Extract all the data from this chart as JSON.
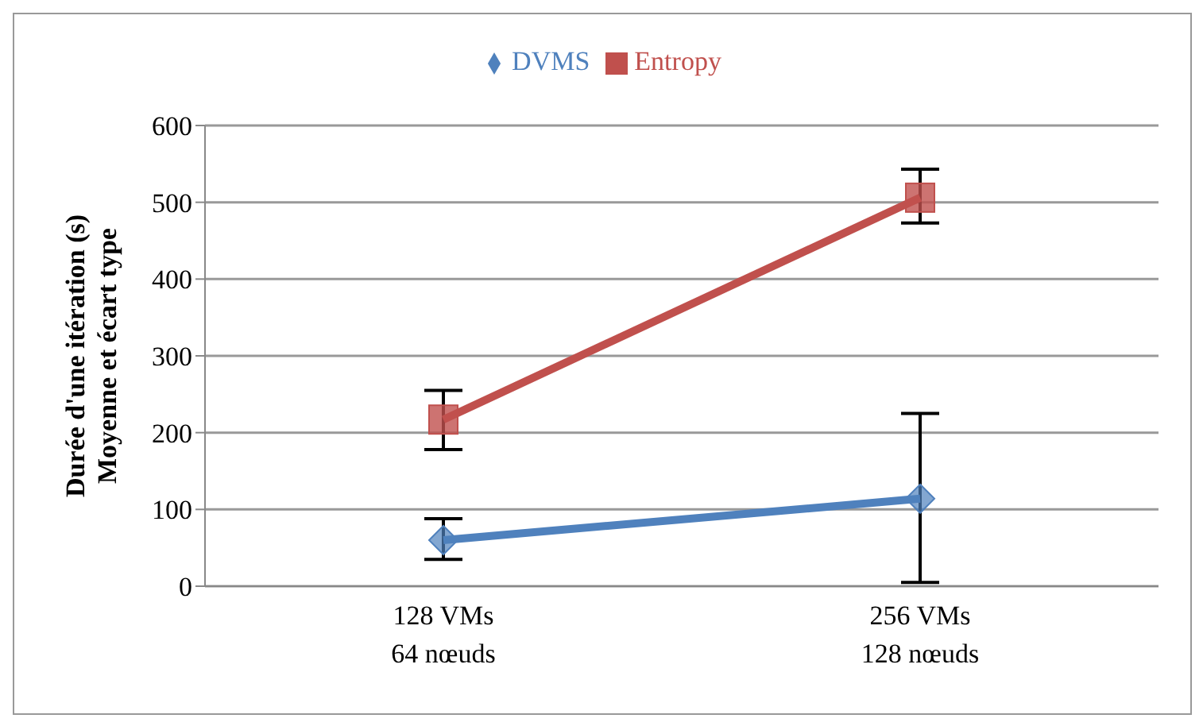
{
  "chart_data": {
    "type": "line",
    "ylabel": "Durée d'une itération (s)\nMoyenne et écart type",
    "categories": [
      "128 VMs\n64 nœuds",
      "256 VMs\n128 nœuds"
    ],
    "series": [
      {
        "name": "DVMS",
        "color": "#4f81bd",
        "marker": "diamond",
        "values": [
          60,
          114
        ],
        "errors": [
          [
            35,
            88
          ],
          [
            5,
            225
          ]
        ]
      },
      {
        "name": "Entropy",
        "color": "#c0504d",
        "marker": "square",
        "values": [
          217,
          506
        ],
        "errors": [
          [
            178,
            255
          ],
          [
            473,
            543
          ]
        ]
      }
    ],
    "ylim": [
      0,
      600
    ],
    "yticks": [
      0,
      100,
      200,
      300,
      400,
      500,
      600
    ],
    "grid": "y",
    "legend": "top"
  }
}
